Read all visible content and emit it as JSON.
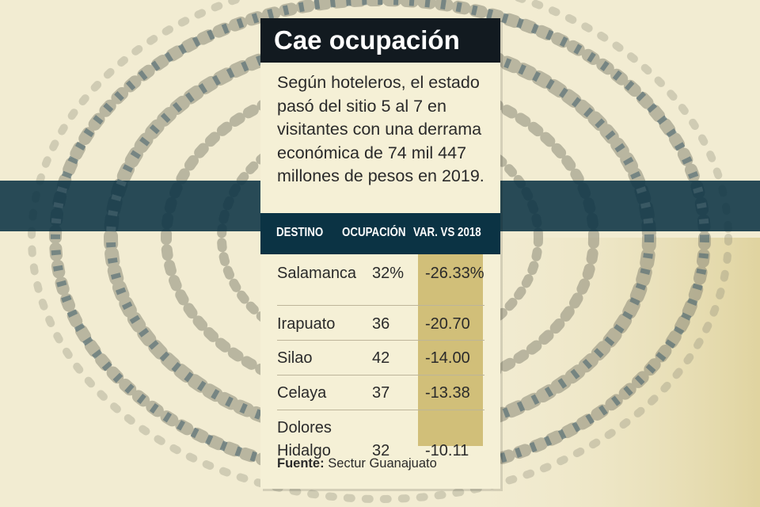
{
  "chart_data": {
    "type": "table",
    "title": "Cae ocupación",
    "description": "Según hoteleros, el estado pasó del sitio 5 al 7 en visitantes con una derrama económica de 74 mil 447 millones de pesos en 2019.",
    "columns": [
      "DESTINO",
      "OCUPACIÓN",
      "VAR. VS 2018"
    ],
    "rows": [
      {
        "destino": "Salamanca",
        "ocupacion": "32%",
        "variacion": "-26.33%"
      },
      {
        "destino": "Irapuato",
        "ocupacion": "36",
        "variacion": "-20.70"
      },
      {
        "destino": "Silao",
        "ocupacion": "42",
        "variacion": "-14.00"
      },
      {
        "destino": "Celaya",
        "ocupacion": "37",
        "variacion": "-13.38"
      },
      {
        "destino": "Dolores Hidalgo",
        "destino_lines": [
          "Dolores",
          "Hidalgo"
        ],
        "ocupacion": "32",
        "variacion": "-10.11"
      }
    ],
    "ocupacion_values": [
      32,
      36,
      42,
      37,
      32
    ],
    "variacion_values": [
      -26.33,
      -20.7,
      -14.0,
      -13.38,
      -10.11
    ],
    "source_label": "Fuente:",
    "source": "Sectur Guanajuato"
  },
  "colors": {
    "background": "#f2ecd2",
    "card": "#f5f0d6",
    "title_bar": "#121a20",
    "header_bar": "#0b3344",
    "highlight": "#d1bf79",
    "text": "#2a2a2a"
  }
}
